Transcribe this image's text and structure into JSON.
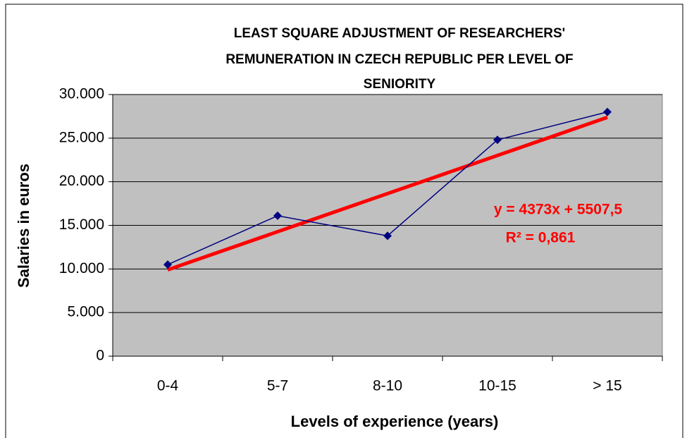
{
  "chart_data": {
    "type": "line",
    "title": [
      "LEAST SQUARE ADJUSTMENT OF RESEARCHERS'",
      "REMUNERATION IN CZECH REPUBLIC PER LEVEL OF",
      "SENIORITY"
    ],
    "x_label": "Levels of experience (years)",
    "y_label": "Salaries in euros",
    "categories": [
      "0-4",
      "5-7",
      "8-10",
      "10-15",
      "> 15"
    ],
    "series": [
      {
        "color": "#000080",
        "values": [
          10500,
          16100,
          13800,
          24800,
          28000
        ]
      }
    ],
    "trendline": {
      "kind": "linear",
      "color": "#ff0000"
    },
    "annotations": [
      "y = 4373x + 5507,5",
      "R² = 0,861"
    ],
    "ylim": [
      0,
      30000
    ],
    "yticks": [
      0,
      {
        "value": 5000,
        "label": "5.000"
      },
      {
        "value": 10000,
        "label": "10.000"
      },
      {
        "value": 15000,
        "label": "15.000"
      },
      {
        "value": 20000,
        "label": "20.000"
      },
      {
        "value": 25000,
        "label": "25.000"
      },
      {
        "value": 30000,
        "label": "30.000"
      }
    ],
    "grid": true,
    "plot_background": "#c0c0c0"
  }
}
